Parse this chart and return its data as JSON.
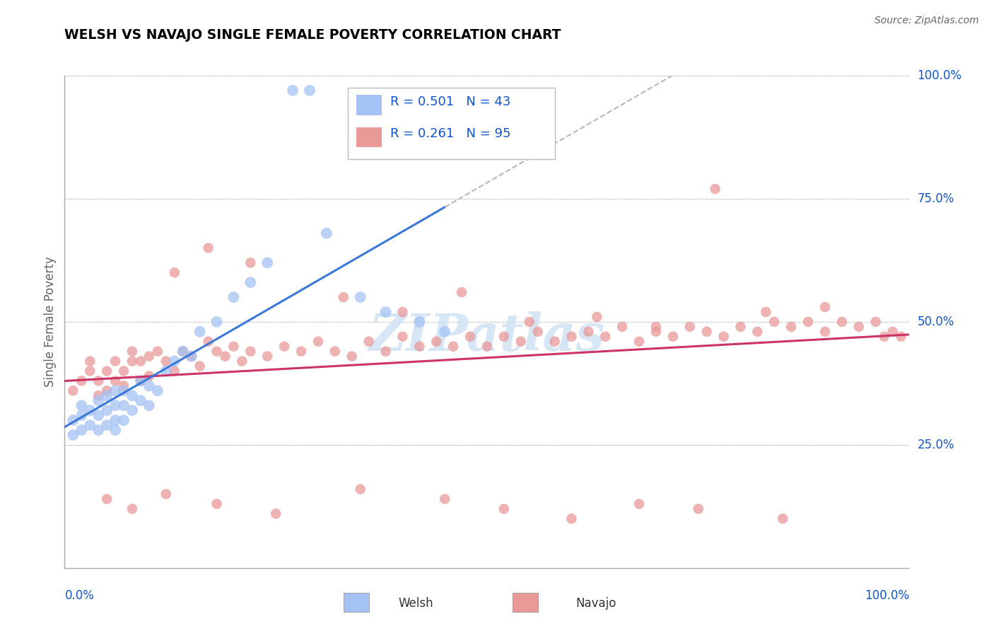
{
  "title": "WELSH VS NAVAJO SINGLE FEMALE POVERTY CORRELATION CHART",
  "source": "Source: ZipAtlas.com",
  "ylabel": "Single Female Poverty",
  "welsh_R": 0.501,
  "welsh_N": 43,
  "navajo_R": 0.261,
  "navajo_N": 95,
  "welsh_color": "#a4c2f4",
  "navajo_color": "#ea9999",
  "welsh_line_color": "#3c78d8",
  "navajo_line_color": "#cc3366",
  "dashed_line_color": "#b7b7b7",
  "legend_color": "#1155cc",
  "background_color": "#ffffff",
  "grid_color": "#cccccc",
  "watermark_text": "ZIPatlas",
  "watermark_color": "#cfe2f3",
  "title_color": "#000000",
  "axis_label_color": "#1155cc",
  "spine_color": "#aaaaaa",
  "ylabel_color": "#666666",
  "source_color": "#666666"
}
